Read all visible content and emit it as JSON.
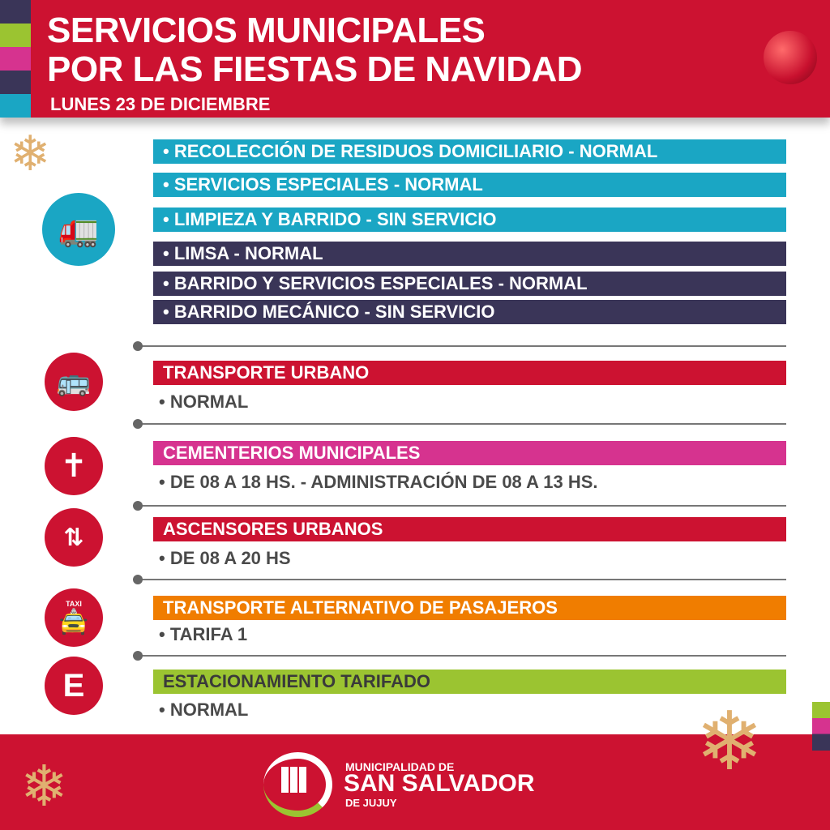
{
  "header": {
    "title_line1": "SERVICIOS MUNICIPALES",
    "title_line2": "POR LAS FIESTAS DE  NAVIDAD",
    "date": "LUNES 23 DE DICIEMBRE"
  },
  "residuos": {
    "icon": "garbage-truck-icon",
    "items": [
      {
        "label": "•  RECOLECCIÓN DE RESIDUOS DOMICILIARIO - NORMAL",
        "color": "#1aa6c4"
      },
      {
        "label": "•  SERVICIOS ESPECIALES - NORMAL",
        "color": "#1aa6c4"
      },
      {
        "label": "•  LIMPIEZA Y BARRIDO - SIN SERVICIO",
        "color": "#1aa6c4"
      },
      {
        "label": "•  LIMSA - NORMAL",
        "color": "#3a3558"
      },
      {
        "label": "•  BARRIDO Y SERVICIOS ESPECIALES - NORMAL",
        "color": "#3a3558"
      },
      {
        "label": "•  BARRIDO MECÁNICO - SIN SERVICIO",
        "color": "#3a3558"
      }
    ]
  },
  "sections": [
    {
      "title": "TRANSPORTE  URBANO",
      "detail": "• NORMAL",
      "icon": "bus-icon",
      "color": "#cc1231"
    },
    {
      "title": "CEMENTERIOS MUNICIPALES",
      "detail": "• DE 08 A 18 HS. - ADMINISTRACIÓN DE 08 A 13 HS.",
      "icon": "cross-icon",
      "color": "#d6338f"
    },
    {
      "title": "ASCENSORES URBANOS",
      "detail": "• DE 08 A 20 HS",
      "icon": "elevator-icon",
      "color": "#cc1231"
    },
    {
      "title": "TRANSPORTE ALTERNATIVO DE PASAJEROS",
      "detail": "• TARIFA 1",
      "icon": "taxi-icon",
      "color": "#f07d00",
      "icon_text": "TAXI"
    },
    {
      "title": "ESTACIONAMIENTO TARIFADO",
      "detail": "• NORMAL",
      "icon": "parking-e-icon",
      "color": "#9bc431",
      "icon_text": "E"
    }
  ],
  "footer": {
    "logo_line1": "MUNICIPALIDAD DE",
    "logo_line2": "SAN SALVADOR",
    "logo_line3": "DE JUJUY"
  }
}
